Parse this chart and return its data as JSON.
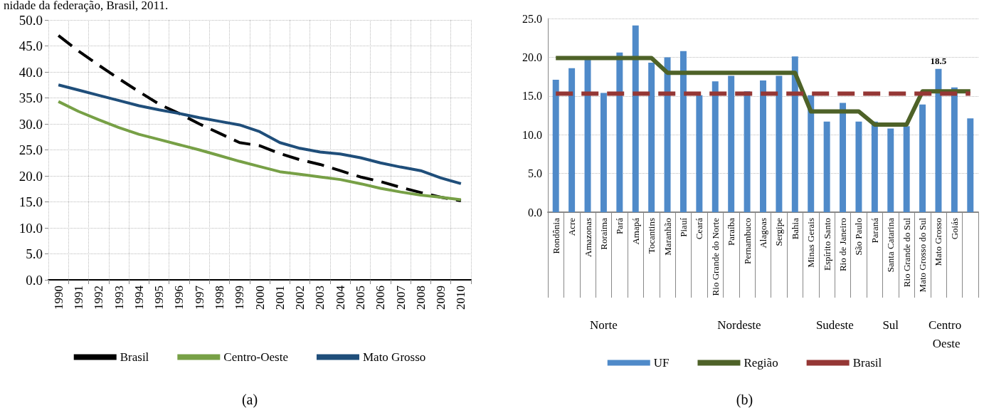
{
  "chart_data": [
    {
      "type": "line",
      "title": "nidade da federação, Brasil, 2011.",
      "categories": [
        "1990",
        "1991",
        "1992",
        "1993",
        "1994",
        "1995",
        "1996",
        "1997",
        "1998",
        "1999",
        "2000",
        "2001",
        "2002",
        "2003",
        "2004",
        "2005",
        "2006",
        "2007",
        "2008",
        "2009",
        "2010"
      ],
      "series": [
        {
          "name": "Brasil",
          "color": "#000000",
          "line_style": "dashed",
          "values": [
            47.0,
            44.0,
            41.3,
            38.7,
            36.2,
            33.8,
            32.0,
            30.0,
            28.2,
            26.4,
            25.8,
            24.3,
            23.1,
            22.2,
            21.0,
            19.8,
            18.9,
            17.8,
            16.8,
            15.9,
            15.2
          ]
        },
        {
          "name": "Centro-Oeste",
          "color": "#77a046",
          "line_style": "solid",
          "values": [
            34.3,
            32.4,
            30.8,
            29.3,
            28.0,
            27.0,
            26.0,
            25.0,
            23.9,
            22.8,
            21.8,
            20.8,
            20.3,
            19.8,
            19.3,
            18.5,
            17.6,
            16.9,
            16.3,
            15.9,
            15.4
          ]
        },
        {
          "name": "Mato Grosso",
          "color": "#1f4e7a",
          "line_style": "solid",
          "values": [
            37.5,
            36.5,
            35.5,
            34.5,
            33.5,
            32.7,
            32.0,
            31.2,
            30.5,
            29.8,
            28.5,
            26.4,
            25.3,
            24.6,
            24.2,
            23.5,
            22.5,
            21.7,
            21.0,
            19.6,
            18.5
          ]
        }
      ],
      "ylim": [
        0,
        50
      ],
      "yticks": [
        {
          "value": 0,
          "label": "0.0"
        },
        {
          "value": 5,
          "label": "5.0"
        },
        {
          "value": 10,
          "label": "10.0"
        },
        {
          "value": 15,
          "label": "15.0"
        },
        {
          "value": 20,
          "label": "20.0"
        },
        {
          "value": 25,
          "label": "25.0"
        },
        {
          "value": 30,
          "label": "30.0"
        },
        {
          "value": 35,
          "label": "35.0"
        },
        {
          "value": 40,
          "label": "40.0"
        },
        {
          "value": 45,
          "label": "45.0"
        },
        {
          "value": 50,
          "label": "50.0"
        }
      ],
      "grid": true,
      "legend": "bottom",
      "marker": "none",
      "annotations": [
        "(a)"
      ]
    },
    {
      "type": "bar",
      "categories": [
        "Rondônia",
        "Acre",
        "Amazonas",
        "Roraima",
        "Pará",
        "Amapá",
        "Tocantins",
        "Maranhão",
        "Piauí",
        "Ceará",
        "Rio Grande do Norte",
        "Paraíba",
        "Pernambuco",
        "Alagoas",
        "Sergipe",
        "Bahia",
        "Minas Gerais",
        "Espírito Santo",
        "Rio de Janeiro",
        "São Paulo",
        "Paraná",
        "Santa Catarina",
        "Rio Grande do Sul",
        "Mato Grosso do Sul",
        "Mato Grosso",
        "Goiás",
        null
      ],
      "series": [
        {
          "name": "UF",
          "color": "#4f8ac9",
          "values": [
            17.1,
            18.6,
            19.8,
            15.4,
            20.6,
            24.1,
            19.3,
            20.0,
            20.8,
            15.1,
            16.9,
            17.6,
            15.6,
            17.0,
            17.6,
            20.1,
            15.1,
            11.7,
            14.1,
            11.7,
            11.7,
            10.8,
            11.1,
            13.9,
            18.5,
            16.1,
            12.1
          ],
          "value_labels": [
            null,
            null,
            null,
            null,
            null,
            null,
            null,
            null,
            null,
            null,
            null,
            null,
            null,
            null,
            null,
            null,
            null,
            null,
            null,
            null,
            null,
            null,
            null,
            null,
            "18.5",
            null,
            null
          ]
        },
        {
          "name": "Região",
          "type": "line",
          "color": "#4e6228",
          "line_style": "solid",
          "values": [
            19.9,
            19.9,
            19.9,
            19.9,
            19.9,
            19.9,
            19.9,
            18.0,
            18.0,
            18.0,
            18.0,
            18.0,
            18.0,
            18.0,
            18.0,
            18.0,
            13.0,
            13.0,
            13.0,
            13.0,
            11.3,
            11.3,
            11.3,
            15.6,
            15.6,
            15.6,
            15.6
          ]
        },
        {
          "name": "Brasil",
          "type": "line",
          "color": "#953735",
          "line_style": "dashed",
          "values": [
            15.3,
            15.3,
            15.3,
            15.3,
            15.3,
            15.3,
            15.3,
            15.3,
            15.3,
            15.3,
            15.3,
            15.3,
            15.3,
            15.3,
            15.3,
            15.3,
            15.3,
            15.3,
            15.3,
            15.3,
            15.3,
            15.3,
            15.3,
            15.3,
            15.3,
            15.3,
            15.3
          ]
        }
      ],
      "ylim": [
        0,
        25
      ],
      "yticks": [
        {
          "value": 0,
          "label": "0.0"
        },
        {
          "value": 5,
          "label": "5.0"
        },
        {
          "value": 10,
          "label": "10.0"
        },
        {
          "value": 15,
          "label": "15.0"
        },
        {
          "value": 20,
          "label": "20.0"
        },
        {
          "value": 25,
          "label": "25.0"
        }
      ],
      "grid": "y",
      "legend": "bottom",
      "marker": "none",
      "annotations": [
        "Norte",
        "Nordeste",
        "Sudeste",
        "Sul",
        "Centro Oeste",
        "(b)"
      ]
    }
  ]
}
